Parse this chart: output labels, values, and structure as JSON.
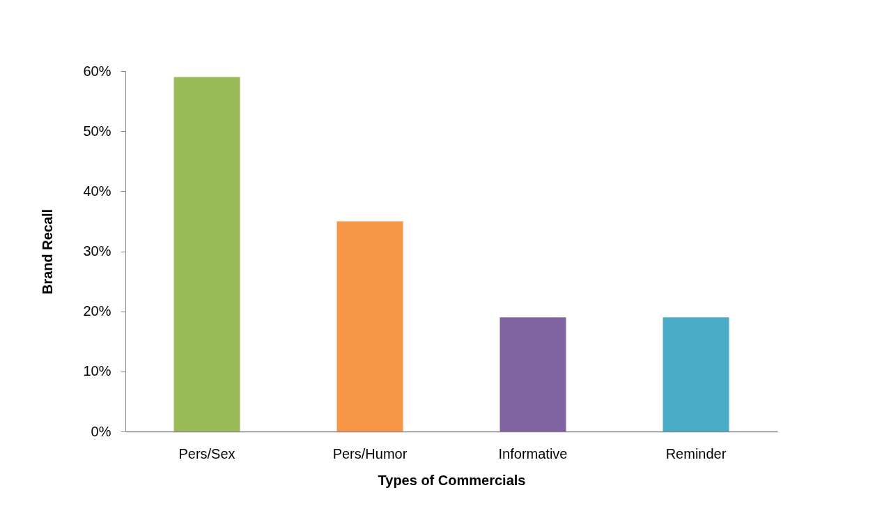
{
  "chart_data": {
    "type": "bar",
    "categories": [
      "Pers/Sex",
      "Pers/Humor",
      "Informative",
      "Reminder"
    ],
    "values": [
      59,
      35,
      19,
      19
    ],
    "colors": [
      "#9bbb59",
      "#f79646",
      "#8064a2",
      "#4bacc6"
    ],
    "xlabel": "Types of Commercials",
    "ylabel": "Brand Recall",
    "ylim": [
      0,
      60
    ],
    "yticks": [
      {
        "value": 0,
        "label": "0%"
      },
      {
        "value": 10,
        "label": "10%"
      },
      {
        "value": 20,
        "label": "20%"
      },
      {
        "value": 30,
        "label": "30%"
      },
      {
        "value": 40,
        "label": "40%"
      },
      {
        "value": 50,
        "label": "50%"
      },
      {
        "value": 60,
        "label": "60%"
      }
    ]
  }
}
